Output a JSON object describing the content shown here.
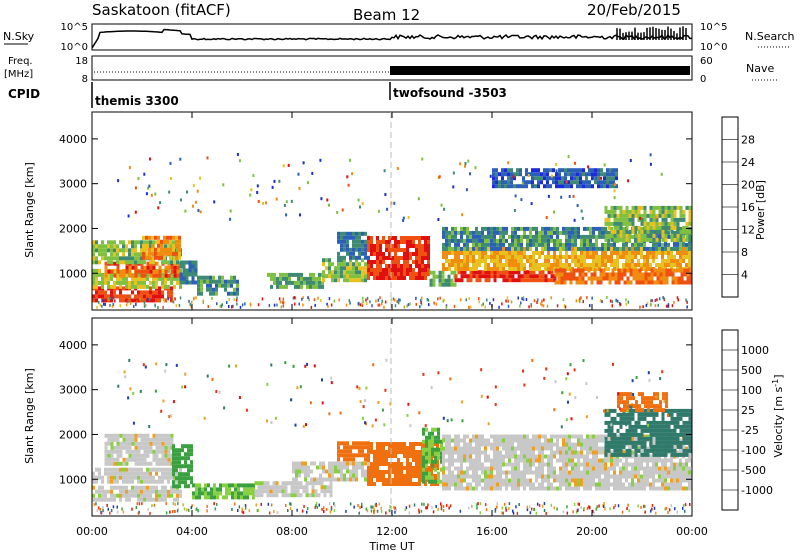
{
  "header": {
    "title": "Saskatoon (fitACF)",
    "beam": "Beam 12",
    "date": "20/Feb/2015"
  },
  "top_panels": {
    "nsky_label": "N.Sky",
    "nsky_ticks": [
      "10^5",
      "10^0"
    ],
    "nsearch_label": "N.Search",
    "nsearch_ticks": [
      "10^5",
      "10^0"
    ],
    "freq_label": "Freq.",
    "freq_unit": "[MHz]",
    "freq_ticks": [
      "18",
      "8"
    ],
    "nave_label": "Nave",
    "nave_ticks": [
      "60",
      "0"
    ],
    "cpid_label": "CPID",
    "cpid_segments": [
      {
        "name": "themis 3300",
        "start_hour": 0,
        "end_hour": 12
      },
      {
        "name": "twofsound -3503",
        "start_hour": 12,
        "end_hour": 24
      }
    ]
  },
  "axes": {
    "xlabel": "Time UT",
    "x_ticks": [
      "00:00",
      "04:00",
      "08:00",
      "12:00",
      "16:00",
      "20:00",
      "00:00"
    ],
    "ylabel": "Slant Range [km]",
    "y_ticks": [
      "1000",
      "2000",
      "3000",
      "4000"
    ]
  },
  "colorbars": {
    "power": {
      "label": "Power [dB]",
      "ticks": [
        "4",
        "8",
        "12",
        "16",
        "20",
        "24",
        "28"
      ],
      "colors": [
        "#1e2bd8",
        "#2b5fb8",
        "#3e8a73",
        "#7fc040",
        "#e8c020",
        "#f08c10",
        "#f05010",
        "#e01010"
      ]
    },
    "velocity": {
      "label": "Velocity [m s",
      "label_sup": "-1",
      "label_end": "]",
      "ticks": [
        "1000",
        "500",
        "100",
        "25",
        "-25",
        "-100",
        "-500",
        "-1000"
      ],
      "colors": [
        "#1c3fb0",
        "#2f7a6a",
        "#3aa040",
        "#88d040",
        "#c8c8c8",
        "#f0a020",
        "#f07010",
        "#f03010",
        "#e01010"
      ]
    }
  },
  "chart_data": [
    {
      "type": "heatmap",
      "title": "Power",
      "x_range_hours": [
        0,
        24
      ],
      "y_range_km": [
        180,
        4600
      ],
      "xlabel": "Time UT",
      "ylabel": "Slant Range [km]",
      "colorbar_label": "Power [dB]",
      "regions": [
        {
          "t0": 0.0,
          "t1": 3.2,
          "r0": 350,
          "r1": 650,
          "value": 28
        },
        {
          "t0": 0.0,
          "t1": 3.5,
          "r0": 650,
          "r1": 1050,
          "value": 16
        },
        {
          "t0": 0.5,
          "t1": 3.5,
          "r0": 900,
          "r1": 1200,
          "value": 26
        },
        {
          "t0": 0.0,
          "t1": 3.5,
          "r0": 1200,
          "r1": 1700,
          "value": 14
        },
        {
          "t0": 2.0,
          "t1": 3.5,
          "r0": 1300,
          "r1": 1750,
          "value": 22
        },
        {
          "t0": 3.5,
          "t1": 4.2,
          "r0": 750,
          "r1": 1200,
          "value": 8
        },
        {
          "t0": 4.2,
          "t1": 5.8,
          "r0": 500,
          "r1": 900,
          "value": 10
        },
        {
          "t0": 7.0,
          "t1": 9.2,
          "r0": 650,
          "r1": 950,
          "value": 12
        },
        {
          "t0": 9.2,
          "t1": 11.0,
          "r0": 800,
          "r1": 1250,
          "value": 14
        },
        {
          "t0": 9.8,
          "t1": 11.0,
          "r0": 1300,
          "r1": 1850,
          "value": 8
        },
        {
          "t0": 11.0,
          "t1": 13.5,
          "r0": 850,
          "r1": 1750,
          "value": 28
        },
        {
          "t0": 13.5,
          "t1": 14.5,
          "r0": 700,
          "r1": 1000,
          "value": 12
        },
        {
          "t0": 14.5,
          "t1": 18.5,
          "r0": 800,
          "r1": 1050,
          "value": 28
        },
        {
          "t0": 14.0,
          "t1": 24.0,
          "r0": 1050,
          "r1": 1500,
          "value": 20
        },
        {
          "t0": 14.0,
          "t1": 24.0,
          "r0": 1500,
          "r1": 2000,
          "value": 10
        },
        {
          "t0": 18.5,
          "t1": 24.0,
          "r0": 750,
          "r1": 1100,
          "value": 24
        },
        {
          "t0": 20.5,
          "t1": 24.0,
          "r0": 1700,
          "r1": 2500,
          "value": 14
        },
        {
          "t0": 16.0,
          "t1": 21.0,
          "r0": 2900,
          "r1": 3300,
          "value": 6
        }
      ]
    },
    {
      "type": "heatmap",
      "title": "Velocity",
      "x_range_hours": [
        0,
        24
      ],
      "y_range_km": [
        180,
        4600
      ],
      "xlabel": "Time UT",
      "ylabel": "Slant Range [km]",
      "colorbar_label": "Velocity [m s-1]",
      "regions": [
        {
          "t0": 0.0,
          "t1": 3.5,
          "r0": 500,
          "r1": 800,
          "value": 0
        },
        {
          "t0": 0.0,
          "t1": 3.5,
          "r0": 900,
          "r1": 1200,
          "value": 0
        },
        {
          "t0": 0.5,
          "t1": 3.2,
          "r0": 1300,
          "r1": 2000,
          "value": 0
        },
        {
          "t0": 3.2,
          "t1": 4.0,
          "r0": 800,
          "r1": 1700,
          "value": 150
        },
        {
          "t0": 4.0,
          "t1": 6.5,
          "r0": 550,
          "r1": 900,
          "value": 100
        },
        {
          "t0": 6.5,
          "t1": 9.5,
          "r0": 600,
          "r1": 950,
          "value": 0
        },
        {
          "t0": 8.0,
          "t1": 11.0,
          "r0": 950,
          "r1": 1350,
          "value": 0
        },
        {
          "t0": 9.8,
          "t1": 11.0,
          "r0": 1400,
          "r1": 1800,
          "value": -300
        },
        {
          "t0": 11.0,
          "t1": 13.8,
          "r0": 850,
          "r1": 1750,
          "value": -200
        },
        {
          "t0": 13.2,
          "t1": 14.0,
          "r0": 900,
          "r1": 2100,
          "value": 100
        },
        {
          "t0": 14.0,
          "t1": 24.0,
          "r0": 750,
          "r1": 2000,
          "value": 0
        },
        {
          "t0": 20.5,
          "t1": 24.0,
          "r0": 1500,
          "r1": 2500,
          "value": 600
        },
        {
          "t0": 21.0,
          "t1": 23.0,
          "r0": 2500,
          "r1": 2900,
          "value": -300
        }
      ]
    }
  ]
}
